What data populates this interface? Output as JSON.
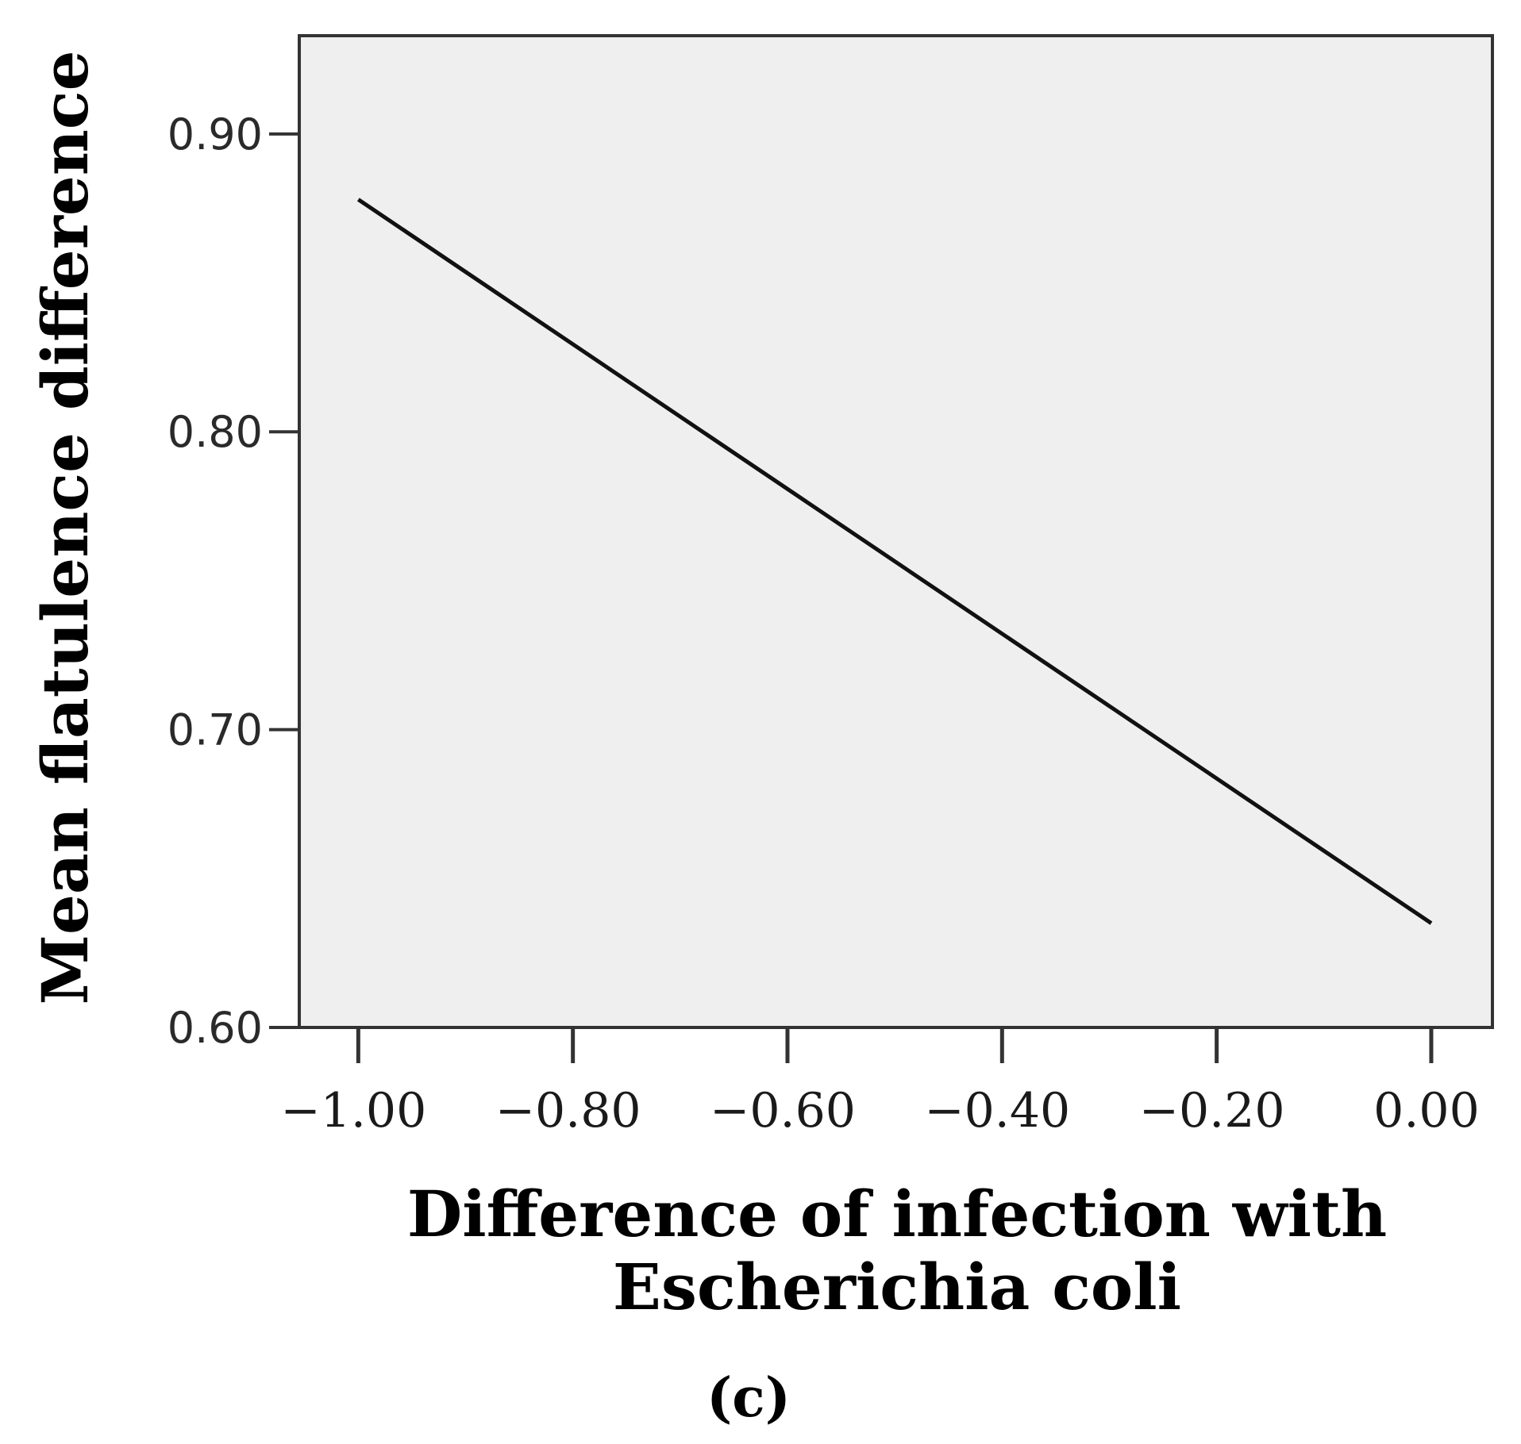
{
  "chart_data": {
    "type": "line",
    "title": "",
    "xlabel_lines": [
      "Difference of infection with",
      "Escherichia coli"
    ],
    "ylabel": "Mean flatulence difference",
    "panel_label": "(c)",
    "xlim": [
      -1.055,
      0.057
    ],
    "ylim": [
      0.6,
      0.933
    ],
    "x_ticks": [
      -1.0,
      -0.8,
      -0.6,
      -0.4,
      -0.2,
      0.0
    ],
    "x_tick_labels": [
      "−1.00",
      "−0.80",
      "−0.60",
      "−0.40",
      "−0.20",
      "0.00"
    ],
    "y_ticks": [
      0.6,
      0.7,
      0.8,
      0.9
    ],
    "y_tick_labels": [
      "0.60",
      "0.70",
      "0.80",
      "0.90"
    ],
    "grid": false,
    "legend": "none",
    "series": [
      {
        "x": [
          -1.0,
          0.0
        ],
        "y": [
          0.878,
          0.635
        ]
      }
    ],
    "colors": {
      "plot_bg": "#efefef",
      "frame": "#333333",
      "line": "#111111"
    }
  }
}
